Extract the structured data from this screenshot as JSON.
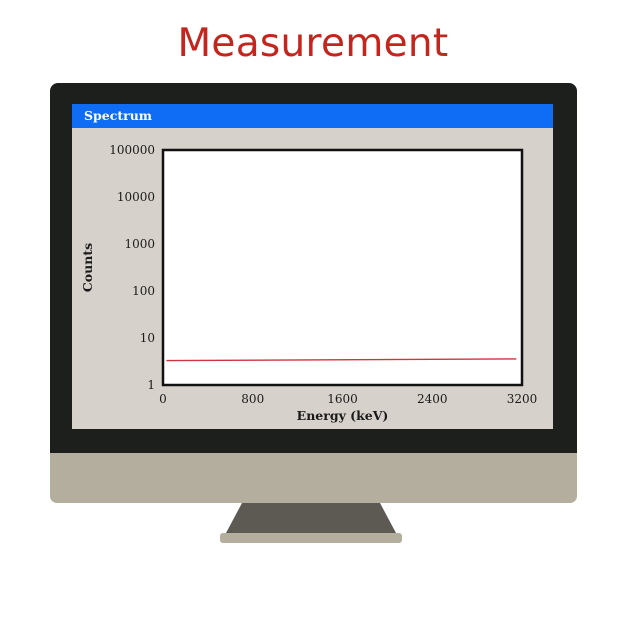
{
  "page": {
    "title": "Measurement",
    "title_color": "#c4261e"
  },
  "window": {
    "title": "Spectrum",
    "titlebar_color": "#0f6cf5"
  },
  "chart_data": {
    "type": "line",
    "xlabel": "Energy (keV)",
    "ylabel": "Counts",
    "xlim": [
      0,
      3200
    ],
    "ylim": [
      1,
      100000
    ],
    "y_scale": "log",
    "x_ticks": [
      "0",
      "800",
      "1600",
      "2400",
      "3200"
    ],
    "y_ticks": [
      "1",
      "10",
      "100",
      "1000",
      "10000",
      "100000"
    ],
    "grid": false,
    "series": [
      {
        "color": "#d0343d",
        "x": [
          30,
          3150
        ],
        "y": [
          3.3,
          3.6
        ]
      }
    ]
  }
}
